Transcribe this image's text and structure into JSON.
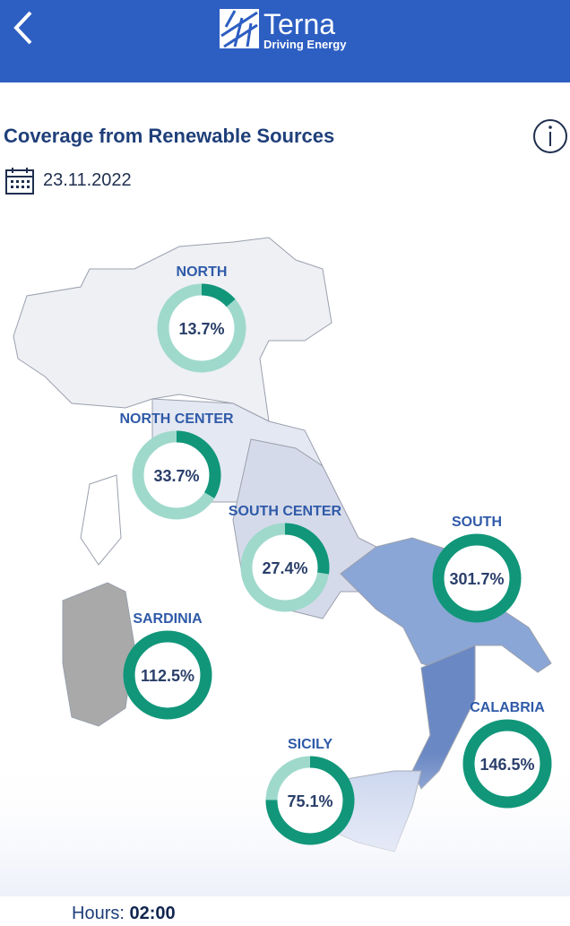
{
  "header": {
    "logo_name": "Terna",
    "logo_tagline": "Driving Energy"
  },
  "title": "Coverage from Renewable Sources",
  "date": "23.11.2022",
  "regions": [
    {
      "name": "NORTH",
      "value": 13.7,
      "label": "13.7%"
    },
    {
      "name": "NORTH CENTER",
      "value": 33.7,
      "label": "33.7%"
    },
    {
      "name": "SOUTH CENTER",
      "value": 27.4,
      "label": "27.4%"
    },
    {
      "name": "SOUTH",
      "value": 301.7,
      "label": "301.7%"
    },
    {
      "name": "SARDINIA",
      "value": 112.5,
      "label": "112.5%"
    },
    {
      "name": "CALABRIA",
      "value": 146.5,
      "label": "146.5%"
    },
    {
      "name": "SICILY",
      "value": 75.1,
      "label": "75.1%"
    }
  ],
  "footer": {
    "hours_label": "Hours:",
    "hours_value": "02:00"
  }
}
